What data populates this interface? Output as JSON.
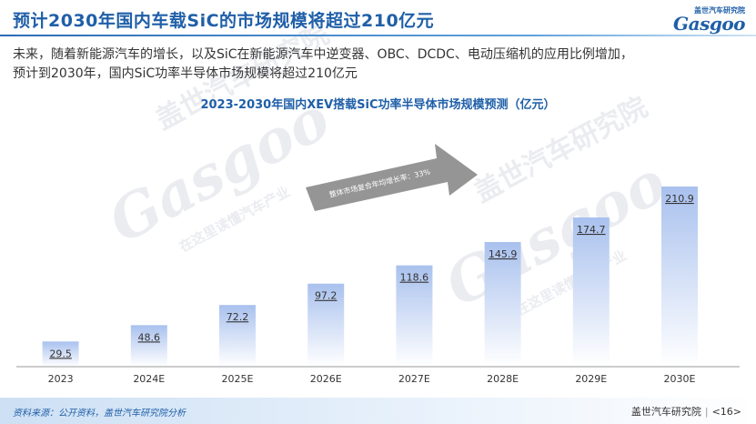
{
  "header": {
    "title": "预计2030年国内车载SiC的市场规模将超过210亿元",
    "logo_tagline": "盖世汽车研究院",
    "logo_text": "Gasgoo"
  },
  "intro": {
    "line1": "未来，随着新能源汽车的增长，以及SiC在新能源汽车中逆变器、OBC、DCDC、电动压缩机的应用比例增加，",
    "line2": "预计到2030年，国内SiC功率半导体市场规模将超过210亿元"
  },
  "chart_title": "2023-2030年国内XEV搭载SiC功率半导体市场规模预测（亿元）",
  "chart_data": {
    "type": "bar",
    "categories": [
      "2023",
      "2024E",
      "2025E",
      "2026E",
      "2027E",
      "2028E",
      "2029E",
      "2030E"
    ],
    "values": [
      29.5,
      48.6,
      72.2,
      97.2,
      118.6,
      145.9,
      174.7,
      210.9
    ],
    "value_labels": [
      "29.5",
      "48.6",
      "72.2",
      "97.2",
      "118.6",
      "145.9",
      "174.7",
      "210.9"
    ],
    "ylim": [
      0,
      210.9
    ],
    "annotation": "整体市场复合年均增长率：33%",
    "bar_color_top": "#a9c1ee",
    "bar_color_bottom": "#ffffff"
  },
  "watermark": {
    "brand": "Gasgoo",
    "cn": "盖世汽车研究院",
    "slogan": "在这里读懂汽车产业"
  },
  "footer": {
    "source": "资料来源：公开资料，盖世汽车研究院分析",
    "org": "盖世汽车研究院",
    "page": "<16>"
  },
  "colors": {
    "accent": "#1f5fa8",
    "arrow": "#8a8a8a"
  }
}
